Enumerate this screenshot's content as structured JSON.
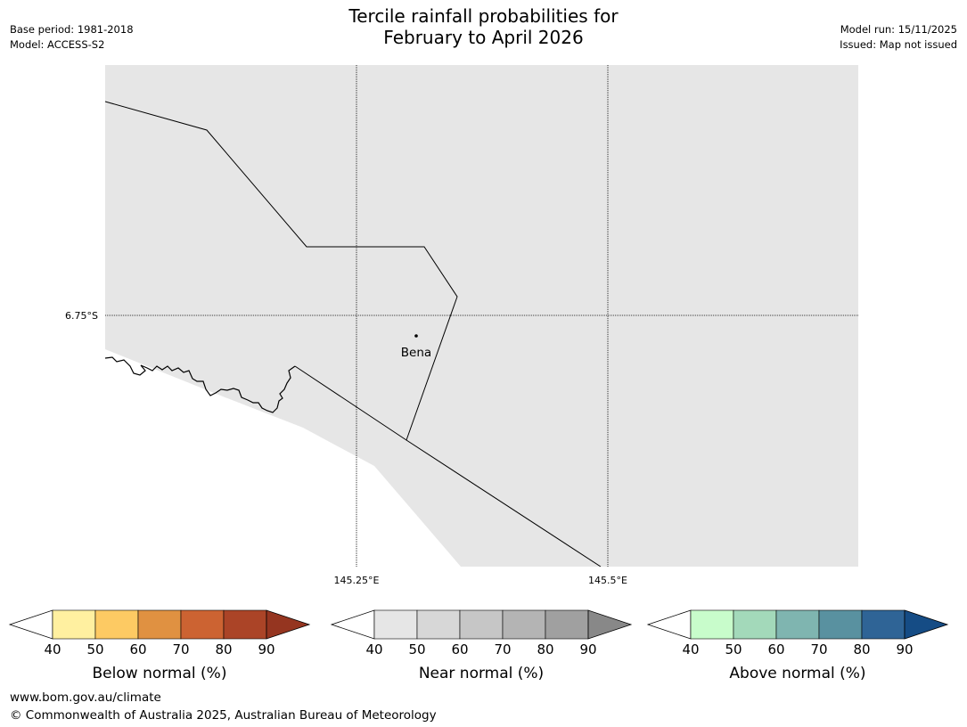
{
  "header": {
    "title_line1": "Tercile rainfall probabilities for",
    "title_line2": "February to April 2026",
    "base_period": "Base period: 1981-2018",
    "model": "Model: ACCESS-S2",
    "model_run": "Model run: 15/11/2025",
    "issued": "Issued: Map not issued"
  },
  "map": {
    "latitude_label": "6.75°S",
    "longitude_labels": [
      "145.25°E",
      "145.5°E"
    ],
    "place_name": "Bena",
    "land_color": "#e6e6e6",
    "sea_color": "#ffffff"
  },
  "colorbars": [
    {
      "name": "below",
      "label": "Below normal (%)",
      "ticks": [
        "40",
        "50",
        "60",
        "70",
        "80",
        "90"
      ],
      "colors": [
        "#fff0a0",
        "#fdca63",
        "#e09141",
        "#cc6332",
        "#ab4427",
        "#953520"
      ]
    },
    {
      "name": "near",
      "label": "Near normal (%)",
      "ticks": [
        "40",
        "50",
        "60",
        "70",
        "80",
        "90"
      ],
      "colors": [
        "#e6e6e6",
        "#d7d7d7",
        "#c6c6c6",
        "#b4b4b4",
        "#a0a0a0",
        "#888888"
      ]
    },
    {
      "name": "above",
      "label": "Above normal (%)",
      "ticks": [
        "40",
        "50",
        "60",
        "70",
        "80",
        "90"
      ],
      "colors": [
        "#c8fccb",
        "#a3d9ba",
        "#7fb5b0",
        "#5991a0",
        "#2f6496",
        "#154c85"
      ]
    }
  ],
  "footer": {
    "url": "www.bom.gov.au/climate",
    "copyright": "© Commonwealth of Australia 2025, Australian Bureau of Meteorology"
  }
}
